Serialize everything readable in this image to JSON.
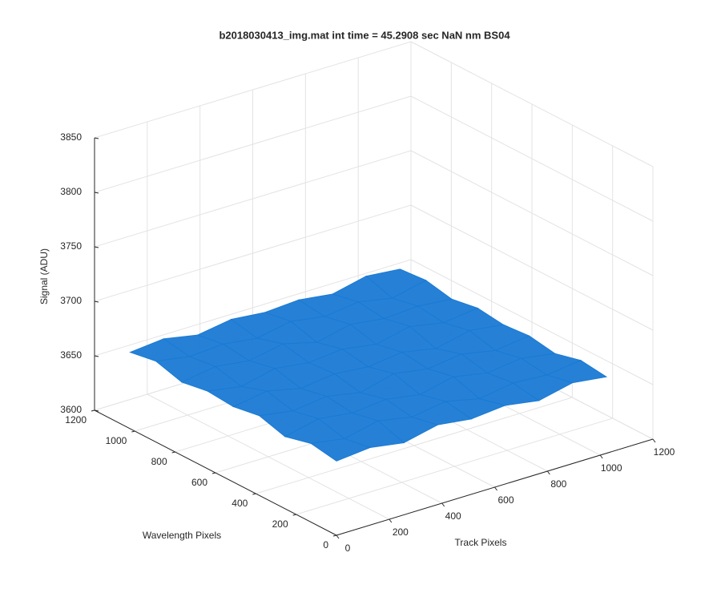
{
  "chart_data": {
    "type": "surface",
    "title": "b2018030413_img.mat int time = 45.2908 sec  NaN nm BS04",
    "xlabel": "Track Pixels",
    "ylabel": "Wavelength Pixels",
    "zlabel": "Signal (ADU)",
    "x": [
      1,
      128,
      256,
      384,
      512,
      640,
      768,
      896,
      1024
    ],
    "y": [
      1,
      128,
      256,
      384,
      512,
      640,
      768,
      896,
      1024
    ],
    "z": [
      [
        3668,
        3671,
        3666,
        3673,
        3669,
        3672,
        3667,
        3674,
        3670
      ],
      [
        3672,
        3667,
        3674,
        3668,
        3673,
        3666,
        3671,
        3669,
        3673
      ],
      [
        3666,
        3673,
        3669,
        3672,
        3667,
        3674,
        3668,
        3672,
        3667
      ],
      [
        3673,
        3668,
        3672,
        3666,
        3674,
        3669,
        3673,
        3667,
        3671
      ],
      [
        3669,
        3674,
        3667,
        3671,
        3668,
        3672,
        3666,
        3673,
        3669
      ],
      [
        3671,
        3666,
        3673,
        3669,
        3672,
        3667,
        3674,
        3668,
        3672
      ],
      [
        3667,
        3672,
        3668,
        3674,
        3666,
        3673,
        3669,
        3671,
        3668
      ],
      [
        3674,
        3669,
        3671,
        3667,
        3673,
        3668,
        3672,
        3666,
        3673
      ],
      [
        3670,
        3673,
        3667,
        3672,
        3669,
        3671,
        3667,
        3674,
        3671
      ]
    ],
    "xlim": [
      0,
      1200
    ],
    "ylim": [
      0,
      1200
    ],
    "zlim": [
      3600,
      3850
    ],
    "xticks": [
      0,
      200,
      400,
      600,
      800,
      1000,
      1200
    ],
    "yticks": [
      0,
      200,
      400,
      600,
      800,
      1000,
      1200
    ],
    "zticks": [
      3600,
      3650,
      3700,
      3750,
      3800,
      3850
    ],
    "grid": true,
    "color": "#1a7ad4"
  }
}
